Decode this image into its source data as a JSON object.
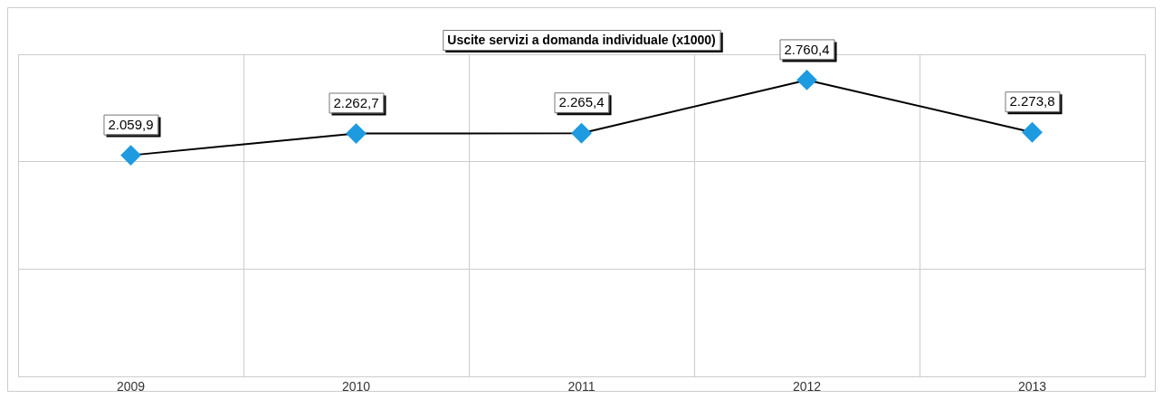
{
  "chart_data": {
    "type": "line",
    "title": "Uscite servizi a domanda individuale (x1000)",
    "categories": [
      "2009",
      "2010",
      "2011",
      "2012",
      "2013"
    ],
    "series": [
      {
        "color": "#1e9be0",
        "values": [
          2059.9,
          2262.7,
          2265.4,
          2760.4,
          2273.8
        ],
        "value_labels": [
          "2.059,9",
          "2.262,7",
          "2.265,4",
          "2.760,4",
          "2.273,8"
        ]
      }
    ],
    "marker": "diamond",
    "grid": true,
    "legend": false,
    "tick_labels": "x"
  }
}
